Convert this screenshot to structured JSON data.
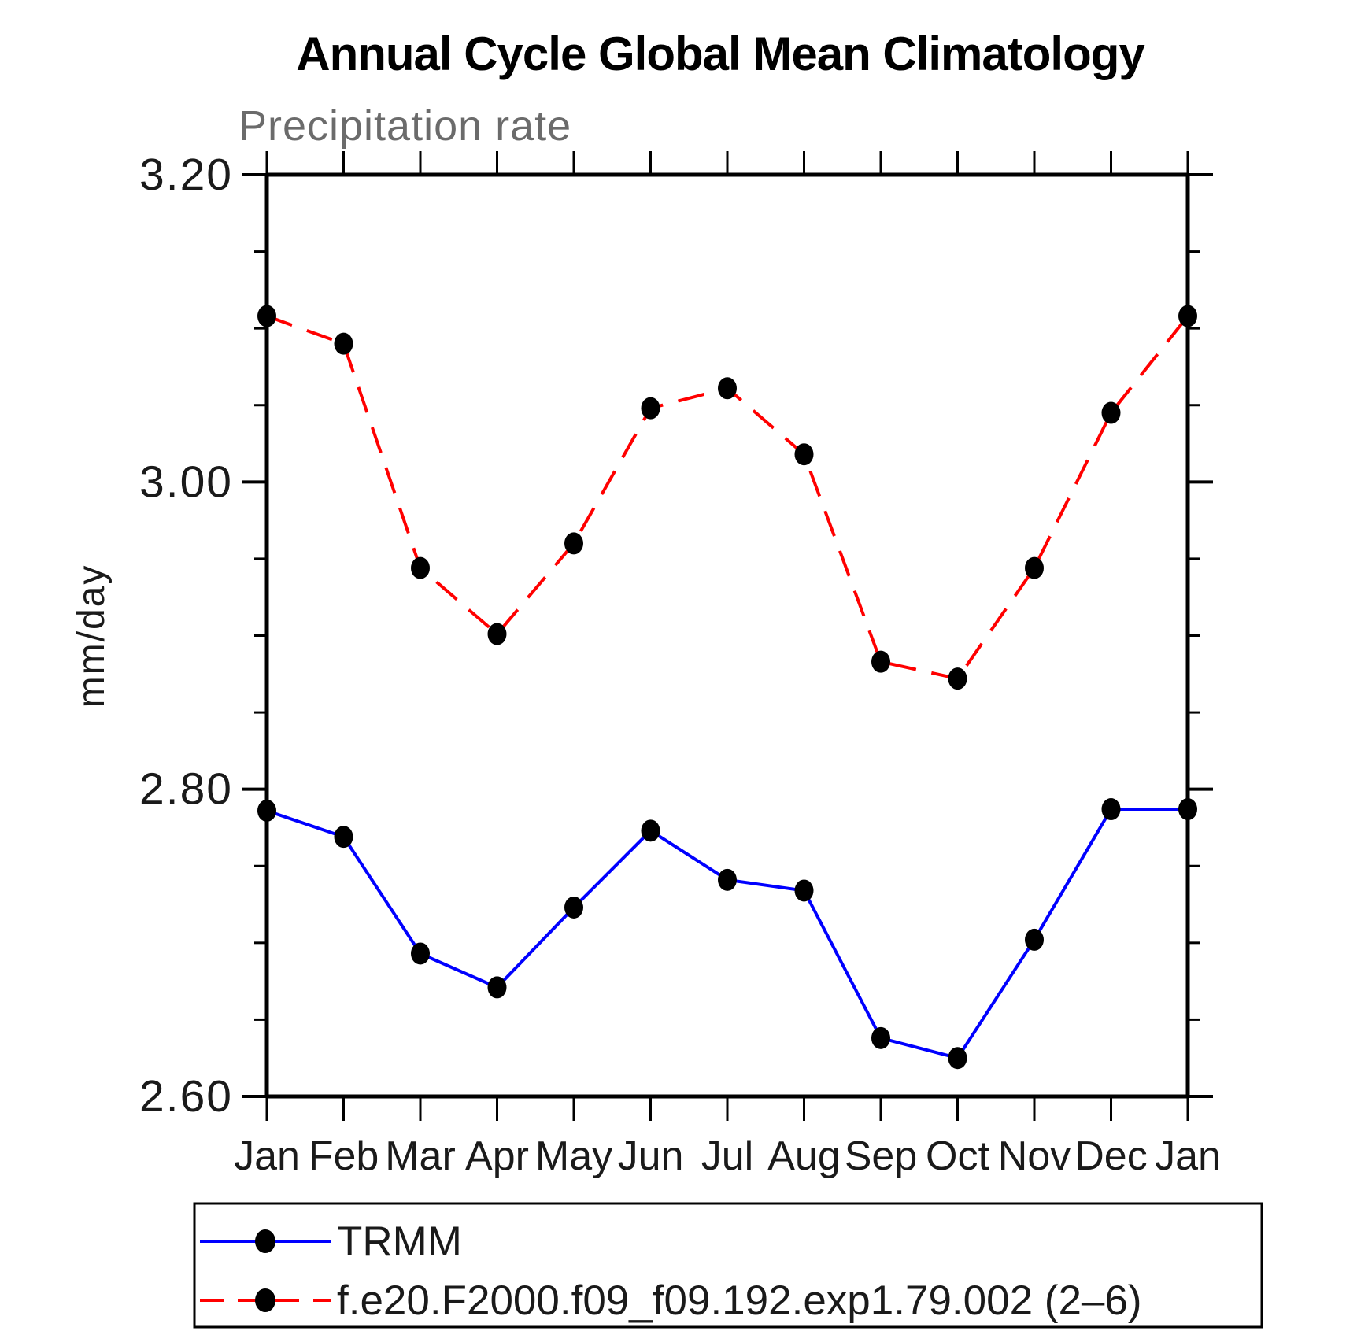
{
  "title": "Annual Cycle Global Mean Climatology",
  "subtitle": "Precipitation rate",
  "ylabel": "mm/day",
  "chart_data": {
    "type": "line",
    "x_categories": [
      "Jan",
      "Feb",
      "Mar",
      "Apr",
      "May",
      "Jun",
      "Jul",
      "Aug",
      "Sep",
      "Oct",
      "Nov",
      "Dec",
      "Jan"
    ],
    "series": [
      {
        "name": "TRMM",
        "color": "#0000ff",
        "line_style": "solid",
        "marker": "filled-black-circle",
        "values": [
          2.786,
          2.769,
          2.693,
          2.671,
          2.723,
          2.773,
          2.741,
          2.734,
          2.638,
          2.625,
          2.702,
          2.787,
          2.787
        ]
      },
      {
        "name": "f.e20.F2000.f09_f09.192.exp1.79.002 (2–6)",
        "color": "#ff0000",
        "line_style": "dashed",
        "marker": "filled-black-circle",
        "values": [
          3.108,
          3.09,
          2.944,
          2.901,
          2.96,
          3.048,
          3.061,
          3.018,
          2.883,
          2.872,
          2.944,
          3.045,
          3.108
        ]
      }
    ],
    "ylim": [
      2.6,
      3.2
    ],
    "ytick_major": [
      2.6,
      2.8,
      3.0,
      3.2
    ],
    "ytick_labels": [
      "2.60",
      "2.80",
      "3.00",
      "3.20"
    ],
    "ytick_minor_interval": 0.05,
    "marker_color": "#000000",
    "grid": false,
    "legend_position": "bottom-left-box"
  }
}
